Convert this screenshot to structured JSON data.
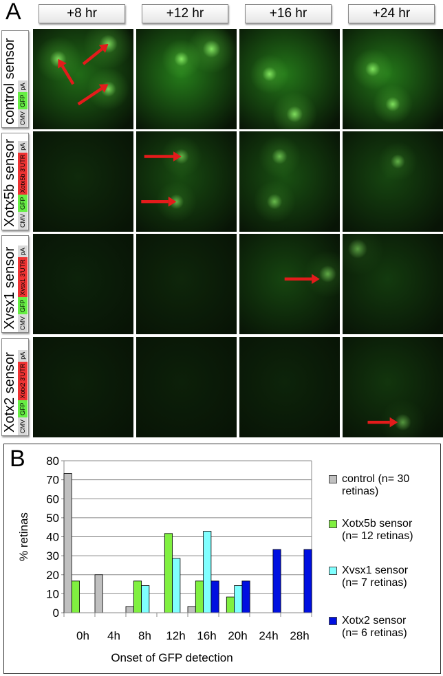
{
  "panel_a": {
    "letter": "A",
    "columns": [
      "+8 hr",
      "+12 hr",
      "+16 hr",
      "+24 hr"
    ],
    "rows": [
      {
        "name": "control sensor",
        "construct": [
          "CMV",
          "GFP",
          "pA"
        ]
      },
      {
        "name": "Xotx5b sensor",
        "construct": [
          "CMV",
          "GFP",
          "Xotx5b 3'UTR",
          "pA"
        ]
      },
      {
        "name": "Xvsx1 sensor",
        "construct": [
          "CMV",
          "GFP",
          "Xvsx1 3'UTR",
          "pA"
        ]
      },
      {
        "name": "Xotx2 sensor",
        "construct": [
          "CMV",
          "GFP",
          "Xotx2 3'UTR",
          "pA"
        ]
      }
    ],
    "colors": {
      "CMV": "#d9d9d9",
      "GFP": "#66ee44",
      "UTR": "#ee3333",
      "pA": "#d9d9d9",
      "arrow": "#e31b1b"
    }
  },
  "chart_data": {
    "type": "bar",
    "panel_letter": "B",
    "categories": [
      "0h",
      "4h",
      "8h",
      "12h",
      "16h",
      "20h",
      "24h",
      "28h"
    ],
    "xlabel": "Onset of GFP detection",
    "ylabel": "% retinas",
    "ylim": [
      0,
      80
    ],
    "yticks": [
      0,
      10,
      20,
      30,
      40,
      50,
      60,
      70,
      80
    ],
    "grid": true,
    "legend_position": "right",
    "series": [
      {
        "name": "control (n= 30 retinas)",
        "legend_lines": [
          "control (n= 30",
          "retinas)"
        ],
        "color": "#c0c0c0",
        "values": [
          73.3,
          20,
          3.3,
          0,
          3.3,
          0,
          0,
          0
        ]
      },
      {
        "name": "Xotx5b sensor (n= 12 retinas)",
        "legend_lines": [
          "Xotx5b sensor",
          "(n= 12 retinas)"
        ],
        "color": "#80f040",
        "values": [
          16.7,
          0,
          16.7,
          41.7,
          16.7,
          8.3,
          0,
          0
        ]
      },
      {
        "name": "Xvsx1 sensor (n= 7 retinas)",
        "legend_lines": [
          "Xvsx1 sensor",
          "(n= 7 retinas)"
        ],
        "color": "#80ffff",
        "values": [
          0,
          0,
          14.3,
          28.6,
          42.9,
          14.3,
          0,
          0
        ]
      },
      {
        "name": "Xotx2 sensor (n= 6 retinas)",
        "legend_lines": [
          "Xotx2 sensor",
          "(n= 6 retinas)"
        ],
        "color": "#0010e0",
        "values": [
          0,
          0,
          0,
          0,
          16.7,
          16.7,
          33.3,
          33.3
        ]
      }
    ]
  }
}
